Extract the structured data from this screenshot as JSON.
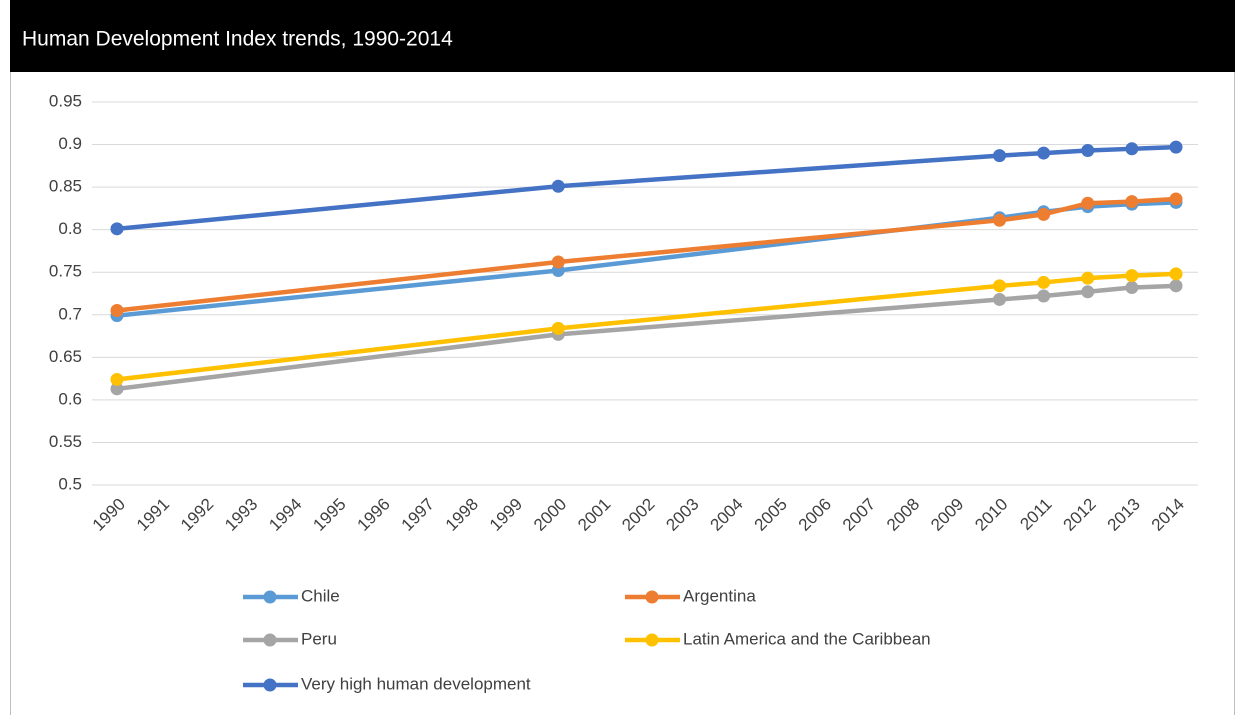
{
  "chart_data": {
    "type": "line",
    "title": "Human Development Index trends, 1990-2014",
    "x": [
      1990,
      2000,
      2010,
      2011,
      2012,
      2013,
      2014
    ],
    "xlim": [
      1990,
      2014
    ],
    "xticks": [
      1990,
      1991,
      1992,
      1993,
      1994,
      1995,
      1996,
      1997,
      1998,
      1999,
      2000,
      2001,
      2002,
      2003,
      2004,
      2005,
      2006,
      2007,
      2008,
      2009,
      2010,
      2011,
      2012,
      2013,
      2014
    ],
    "ylim": [
      0.5,
      0.95
    ],
    "yticks": [
      0.5,
      0.55,
      0.6,
      0.65,
      0.7,
      0.75,
      0.8,
      0.85,
      0.9,
      0.95
    ],
    "grid": true,
    "legend": "bottom",
    "series": [
      {
        "name": "Chile",
        "color": "#5b9bd5",
        "values": [
          0.699,
          0.752,
          0.814,
          0.821,
          0.827,
          0.83,
          0.832
        ]
      },
      {
        "name": "Argentina",
        "color": "#ed7d31",
        "values": [
          0.705,
          0.762,
          0.811,
          0.818,
          0.831,
          0.833,
          0.836
        ]
      },
      {
        "name": "Peru",
        "color": "#a5a5a5",
        "values": [
          0.613,
          0.677,
          0.718,
          0.722,
          0.727,
          0.732,
          0.734
        ]
      },
      {
        "name": "Latin America and the Caribbean",
        "color": "#ffc000",
        "values": [
          0.624,
          0.684,
          0.734,
          0.738,
          0.743,
          0.746,
          0.748
        ]
      },
      {
        "name": "Very high human development",
        "color": "#4472c4",
        "values": [
          0.801,
          0.851,
          0.887,
          0.89,
          0.893,
          0.895,
          0.897
        ]
      }
    ]
  }
}
